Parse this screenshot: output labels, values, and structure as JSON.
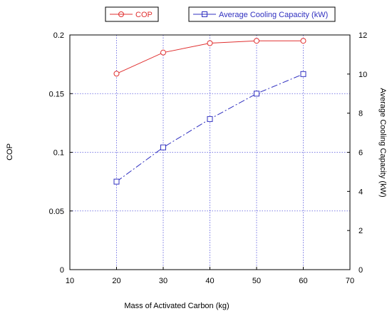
{
  "chart_data": {
    "type": "line",
    "xlabel": "Mass of Activated Carbon (kg)",
    "ylabel_left": "COP",
    "ylabel_right": "Average Cooling Capacity (kW)",
    "xlim": [
      10,
      70
    ],
    "xticks": [
      10,
      20,
      30,
      40,
      50,
      60,
      70
    ],
    "ylim_left": [
      0,
      0.2
    ],
    "yticks_left": [
      "0",
      "0.05",
      "0.1",
      "0.15",
      "0.2"
    ],
    "yticks_left_values": [
      0,
      0.05,
      0.1,
      0.15,
      0.2
    ],
    "ylim_right": [
      0,
      12
    ],
    "yticks_right": [
      0,
      2,
      4,
      6,
      8,
      10,
      12
    ],
    "grid": true,
    "legend_position": "top",
    "series": [
      {
        "name": "COP",
        "axis": "left",
        "color": "#e03030",
        "marker": "circle",
        "line": "solid",
        "x": [
          20,
          30,
          40,
          50,
          60
        ],
        "y": [
          0.167,
          0.185,
          0.193,
          0.195,
          0.195
        ]
      },
      {
        "name": "Average Cooling Capacity (kW)",
        "axis": "right",
        "color": "#3030c0",
        "marker": "square",
        "line": "dashdot",
        "x": [
          20,
          30,
          40,
          50,
          60
        ],
        "y": [
          4.5,
          6.25,
          7.7,
          9.0,
          10.0
        ]
      }
    ]
  }
}
